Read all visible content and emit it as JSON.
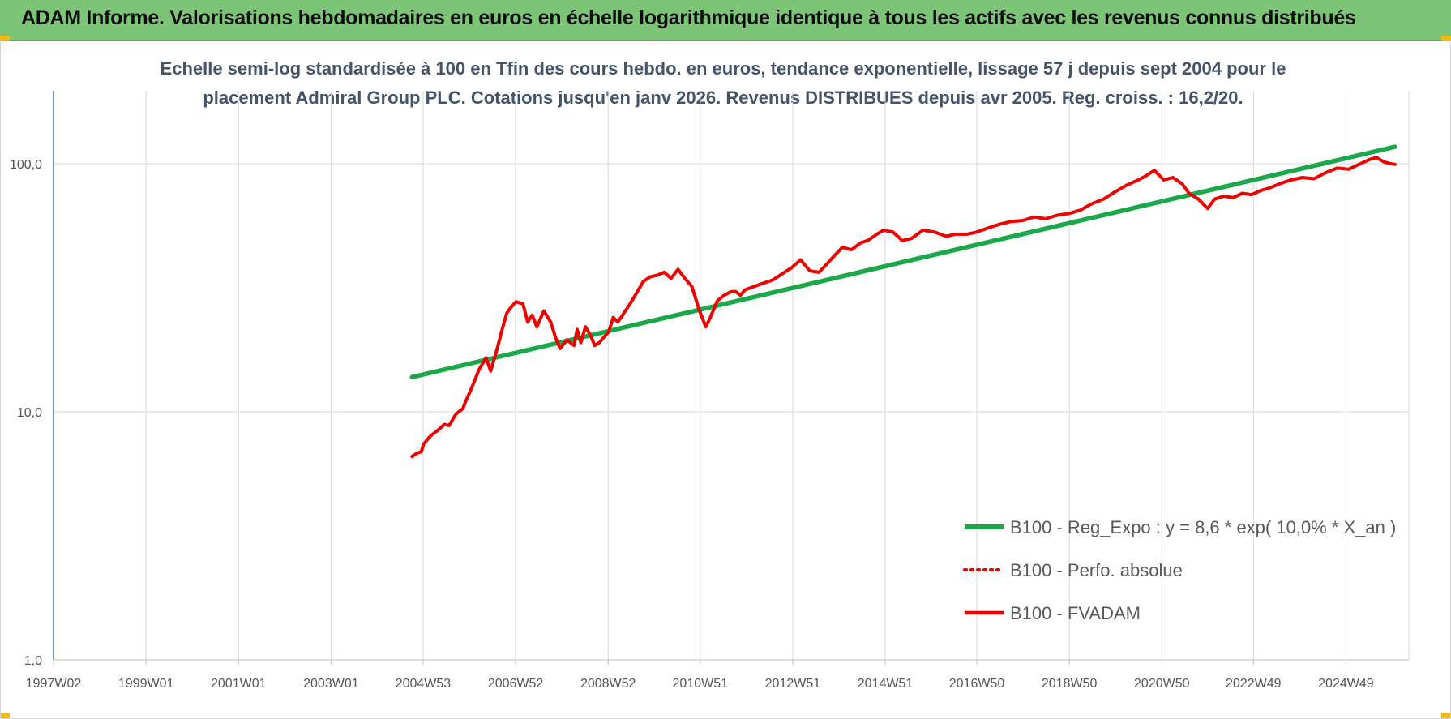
{
  "header": {
    "title": "ADAM Informe. Valorisations hebdomadaires en euros en échelle logarithmique identique à tous les actifs avec les revenus connus distribués"
  },
  "colors": {
    "header_bg": "#7cc576",
    "corner_accent": "#f2b90c",
    "trend_line": "#1aa84a",
    "fvadam_line": "#ee0000",
    "perf_line": "#ee0000",
    "grid": "#d9d9d9",
    "axis": "#4472c4"
  },
  "chart_data": {
    "type": "line",
    "subtitle_lines": [
      "Echelle semi-log standardisée à 100 en Tfin des cours hebdo. en euros, tendance exponentielle, lissage 57 j depuis sept 2004 pour le",
      "placement Admiral Group PLC. Cotations jusqu'en janv 2026. Revenus DISTRIBUES depuis avr 2005. Reg. croiss. : 16,2/20."
    ],
    "y_scale": "log",
    "ylim": [
      1,
      200
    ],
    "y_ticks": [
      1,
      10,
      100
    ],
    "y_tick_labels": [
      "1,0",
      "10,0",
      "100,0"
    ],
    "x_range": [
      1997.0,
      2026.3
    ],
    "x_ticks": [
      1997.0,
      1999.0,
      2001.0,
      2003.0,
      2004.99,
      2006.99,
      2008.99,
      2010.98,
      2012.98,
      2014.98,
      2016.96,
      2018.96,
      2020.96,
      2022.94,
      2024.94
    ],
    "x_tick_labels": [
      "1997W02",
      "1999W01",
      "2001W01",
      "2003W01",
      "2004W53",
      "2006W52",
      "2008W52",
      "2010W51",
      "2012W51",
      "2014W51",
      "2016W50",
      "2018W50",
      "2020W50",
      "2022W49",
      "2024W49"
    ],
    "grid": "vertical and horizontal",
    "legend_position": "right",
    "series": [
      {
        "name": "B100 - Reg_Expo : y = 8,6 * exp( 10,0% *  X_an )",
        "style": "solid-green",
        "x": [
          2004.75,
          2026.0
        ],
        "y": [
          13.8,
          117
        ]
      },
      {
        "name": "B100 - Perfo. absolue",
        "style": "dotted-red",
        "x": [],
        "y": []
      },
      {
        "name": "B100 - FVADAM",
        "style": "solid-red",
        "x": [
          2004.75,
          2004.85,
          2004.95,
          2005.0,
          2005.15,
          2005.3,
          2005.45,
          2005.55,
          2005.7,
          2005.85,
          2005.9,
          2006.05,
          2006.2,
          2006.35,
          2006.45,
          2006.52,
          2006.6,
          2006.7,
          2006.8,
          2006.9,
          2007.0,
          2007.15,
          2007.25,
          2007.35,
          2007.45,
          2007.6,
          2007.75,
          2007.85,
          2007.95,
          2008.1,
          2008.25,
          2008.32,
          2008.4,
          2008.5,
          2008.6,
          2008.7,
          2008.8,
          2008.9,
          2009.0,
          2009.1,
          2009.2,
          2009.3,
          2009.45,
          2009.6,
          2009.75,
          2009.9,
          2010.05,
          2010.2,
          2010.35,
          2010.5,
          2010.65,
          2010.8,
          2010.95,
          2011.1,
          2011.2,
          2011.35,
          2011.5,
          2011.65,
          2011.75,
          2011.85,
          2011.95,
          2012.15,
          2012.35,
          2012.55,
          2012.75,
          2012.95,
          2013.15,
          2013.35,
          2013.55,
          2013.75,
          2013.9,
          2014.05,
          2014.25,
          2014.45,
          2014.6,
          2014.8,
          2014.95,
          2015.15,
          2015.35,
          2015.55,
          2015.8,
          2016.05,
          2016.3,
          2016.5,
          2016.75,
          2016.95,
          2017.2,
          2017.45,
          2017.7,
          2017.95,
          2018.2,
          2018.45,
          2018.7,
          2018.95,
          2019.2,
          2019.45,
          2019.7,
          2019.95,
          2020.2,
          2020.45,
          2020.6,
          2020.8,
          2021.0,
          2021.2,
          2021.4,
          2021.55,
          2021.75,
          2021.95,
          2022.1,
          2022.3,
          2022.5,
          2022.7,
          2022.9,
          2023.1,
          2023.3,
          2023.5,
          2023.75,
          2024.0,
          2024.25,
          2024.5,
          2024.75,
          2025.0,
          2025.25,
          2025.45,
          2025.6,
          2025.75,
          2025.9,
          2026.0
        ],
        "y": [
          6.6,
          6.8,
          6.9,
          7.4,
          8.0,
          8.4,
          8.9,
          8.8,
          9.8,
          10.3,
          10.9,
          12.6,
          14.8,
          16.5,
          14.6,
          16.2,
          18.2,
          21.5,
          25.0,
          26.5,
          27.8,
          27.2,
          23.0,
          24.5,
          22.0,
          25.5,
          23.0,
          20.0,
          18.0,
          19.5,
          18.5,
          21.5,
          19.0,
          22.0,
          20.5,
          18.5,
          19.0,
          20.0,
          21.0,
          24.0,
          23.0,
          24.5,
          27.0,
          30.0,
          33.5,
          35.0,
          35.5,
          36.5,
          34.5,
          37.5,
          34.5,
          32.0,
          26.0,
          22.0,
          24.0,
          28.0,
          29.5,
          30.5,
          30.5,
          29.5,
          31.0,
          32.0,
          33.0,
          34.0,
          36.0,
          38.0,
          41.0,
          37.0,
          36.5,
          40.0,
          43.0,
          46.0,
          45.0,
          48.0,
          49.0,
          52.0,
          54.0,
          53.0,
          49.0,
          50.0,
          54.0,
          53.0,
          51.0,
          52.0,
          52.0,
          53.0,
          55.0,
          57.0,
          58.5,
          59.0,
          61.0,
          60.0,
          62.0,
          63.0,
          65.0,
          69.0,
          72.0,
          77.0,
          82.0,
          86.0,
          89.0,
          94.0,
          86.0,
          88.0,
          83.0,
          76.0,
          72.0,
          66.0,
          72.0,
          74.0,
          73.0,
          76.0,
          75.0,
          78.0,
          80.0,
          83.0,
          86.0,
          88.0,
          87.0,
          92.0,
          96.0,
          95.0,
          100.0,
          104.0,
          106.0,
          102.0,
          100.0,
          99.5
        ]
      }
    ]
  }
}
